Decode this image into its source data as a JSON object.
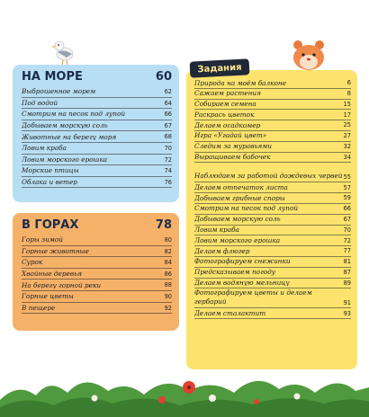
{
  "sea": {
    "title": "НА МОРЕ",
    "page": "60",
    "items": [
      {
        "label": "Выброшенное морем",
        "page": "62"
      },
      {
        "label": "Под водой",
        "page": "64"
      },
      {
        "label": "Смотрим на песок под лупой",
        "page": "66"
      },
      {
        "label": "Добываем морскую соль",
        "page": "67"
      },
      {
        "label": "Животные на берегу моря",
        "page": "68"
      },
      {
        "label": "Ловим краба",
        "page": "70"
      },
      {
        "label": "Ловим морского ерошка",
        "page": "72"
      },
      {
        "label": "Морские птицы",
        "page": "74"
      },
      {
        "label": "Облака и ветер",
        "page": "76"
      }
    ]
  },
  "mountains": {
    "title": "В ГОРАХ",
    "page": "78",
    "items": [
      {
        "label": "Горы зимой",
        "page": "80"
      },
      {
        "label": "Горные животные",
        "page": "82"
      },
      {
        "label": "Сурок",
        "page": "84"
      },
      {
        "label": "Хвойные деревья",
        "page": "86"
      },
      {
        "label": "На берегу горной реки",
        "page": "88"
      },
      {
        "label": "Горные цветы",
        "page": "90"
      },
      {
        "label": "В пещере",
        "page": "92"
      }
    ]
  },
  "tasks": {
    "title": "Задания",
    "items": [
      {
        "label": "Природа на моём балконе",
        "page": "6"
      },
      {
        "label": "Сажаем растения",
        "page": "8"
      },
      {
        "label": "Собираем семена",
        "page": "15"
      },
      {
        "label": "Раскрась цветок",
        "page": "17"
      },
      {
        "label": "Делаем осадкомер",
        "page": "25"
      },
      {
        "label": "Игра «Угадай цвет»",
        "page": "27"
      },
      {
        "label": "Следим за муравьями",
        "page": "32"
      },
      {
        "label": "Выращиваем бабочек",
        "page": "34"
      },
      {
        "label": "Наблюдаем за работой дождевых червей",
        "page": "55",
        "two": true
      },
      {
        "label": "Делаем отпечаток листа",
        "page": "57"
      },
      {
        "label": "Добываем грибные споры",
        "page": "59"
      },
      {
        "label": "Смотрим на песок под лупой",
        "page": "66"
      },
      {
        "label": "Добываем морскую соль",
        "page": "67"
      },
      {
        "label": "Ловим краба",
        "page": "70"
      },
      {
        "label": "Ловим морского ерошка",
        "page": "72"
      },
      {
        "label": "Делаем флюгер",
        "page": "77"
      },
      {
        "label": "Фотографируем снежинки",
        "page": "81"
      },
      {
        "label": "Предсказываем погоду",
        "page": "87"
      },
      {
        "label": "Делаем водяную мельницу",
        "page": "89"
      },
      {
        "label": "Фотографируем цветы и делаем гербарий",
        "page": "91",
        "two": true
      },
      {
        "label": "Делаем сталактит",
        "page": "93"
      }
    ]
  },
  "colors": {
    "sea": "#b8def3",
    "mountains": "#f6b169",
    "tasks": "#fbe36d"
  }
}
